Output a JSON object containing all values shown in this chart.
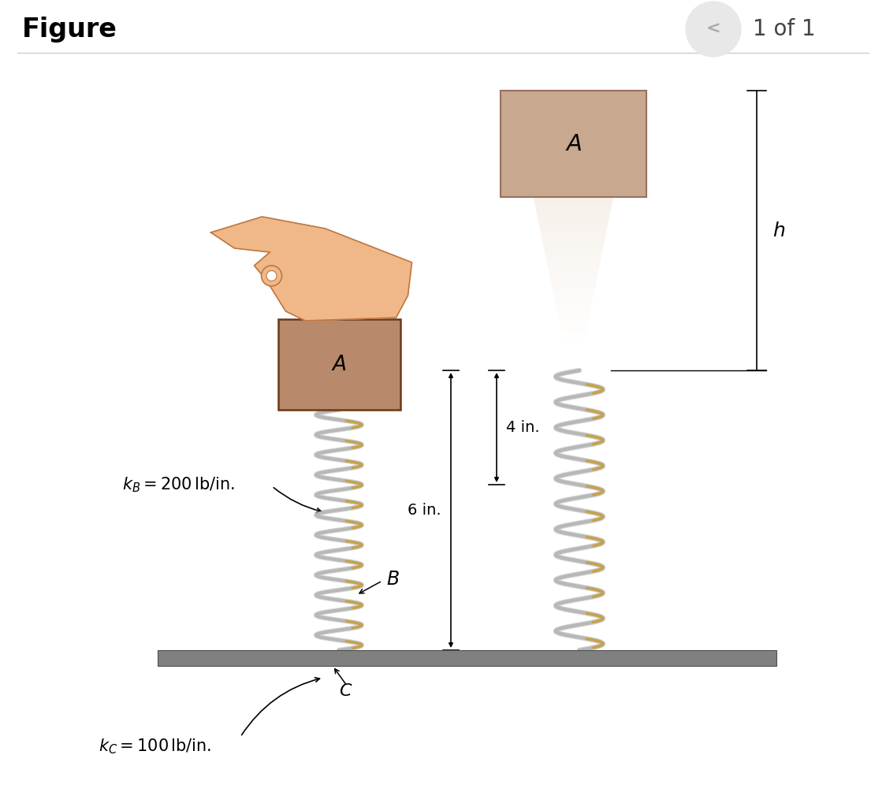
{
  "bg_color": "#ffffff",
  "title": "Figure",
  "nav_text": "1 of 1",
  "block_color": "#b8896a",
  "block_falling_color": "#c9a890",
  "hand_color": "#f0b888",
  "hand_edge_color": "#c07840",
  "spring_color_main": "#b8b8b8",
  "spring_color_accent": "#c8a040",
  "floor_color": "#808080",
  "floor_edge": "#505050",
  "shadow_color_top": "#d4b090",
  "shadow_color_bot": "#ffffff",
  "dim_color": "#000000",
  "label_color": "#000000",
  "nav_circle_color": "#e8e8e8",
  "nav_arrow_color": "#aaaaaa",
  "header_line_color": "#cccccc"
}
